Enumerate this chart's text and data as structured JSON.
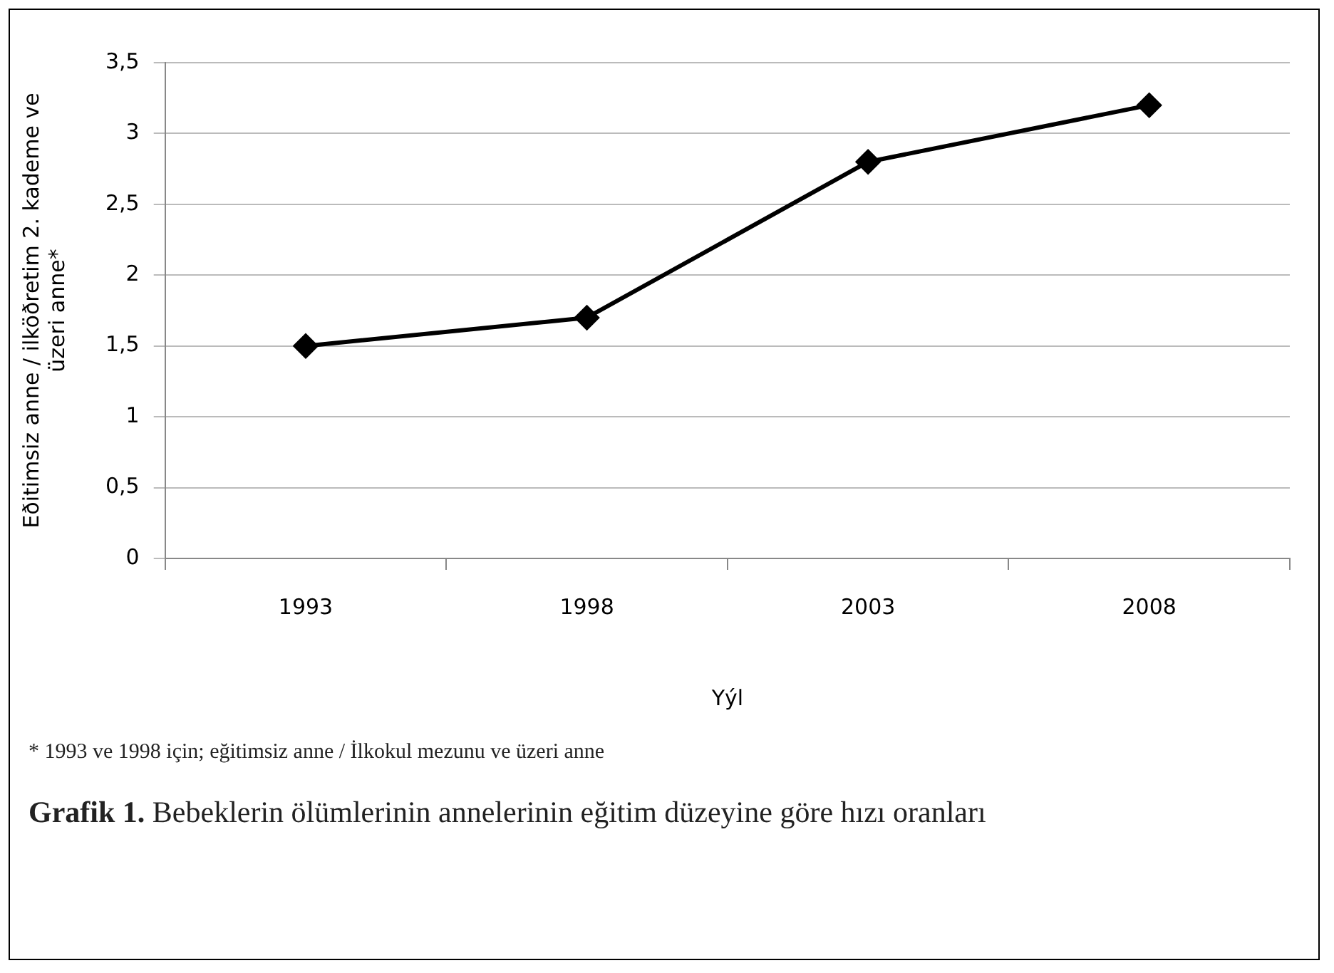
{
  "chart_data": {
    "type": "line",
    "title": "Grafik 1. Bebeklerin ölümlerinin annelerinin eğitim düzeyine göre hızı oranları",
    "xlabel": "Yýl",
    "ylabel": "Eðitimsiz anne / ilköðretim 2. kademe ve üzeri anne*",
    "annotations": [
      "* 1993 ve 1998 için; eğitimsiz anne / İlkokul mezunu ve üzeri anne"
    ],
    "categories": [
      "1993",
      "1998",
      "2003",
      "2008"
    ],
    "series": [
      {
        "color": "#000000",
        "values": [
          1.5,
          1.7,
          2.8,
          3.2
        ]
      }
    ],
    "ylim": [
      0,
      3.5
    ],
    "yticks": [
      {
        "value": 0,
        "label": "0"
      },
      {
        "value": 0.5,
        "label": "0,5"
      },
      {
        "value": 1,
        "label": "1"
      },
      {
        "value": 1.5,
        "label": "1,5"
      },
      {
        "value": 2,
        "label": "2"
      },
      {
        "value": 2.5,
        "label": "2,5"
      },
      {
        "value": 3,
        "label": "3"
      },
      {
        "value": 3.5,
        "label": "3,5"
      }
    ],
    "grid": "y",
    "legend": false,
    "marker": "diamond",
    "line_style": "solid"
  }
}
